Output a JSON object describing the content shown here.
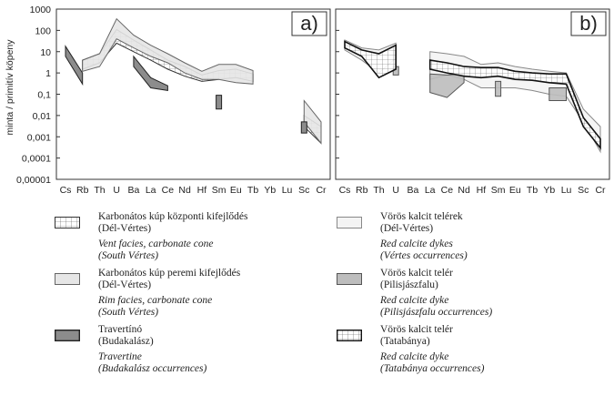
{
  "figure": {
    "ylabel": "minta / primitív köpeny",
    "ytick_labels": [
      "1000",
      "100",
      "10",
      "1",
      "0,1",
      "0,01",
      "0,001",
      "0,0001",
      "0,00001"
    ],
    "colors": {
      "vent": "#ffffff",
      "rim": "#e6e6e6",
      "travertine": "#8c8c8c",
      "red_calcite_dikes": "#f4f4f4",
      "red_calcite_pilis": "#bdbdbd",
      "red_calcite_tatabanya": "#ffffff"
    }
  },
  "chart_data": [
    {
      "type": "line",
      "panel_label": "a)",
      "categories": [
        "Cs",
        "Rb",
        "Th",
        "U",
        "Ba",
        "La",
        "Ce",
        "Nd",
        "Hf",
        "Sm",
        "Eu",
        "Tb",
        "Yb",
        "Lu",
        "Sc",
        "Cr"
      ],
      "ylabel": "minta / primitív köpeny",
      "ylim": [
        1e-05,
        1000
      ],
      "yscale": "log",
      "series": [
        {
          "name": "Karbonátos kúp központi kifejlődés (Dél-Vértes)",
          "key": "vent",
          "upper": [
            null,
            4,
            8,
            110,
            35,
            12,
            4,
            2,
            0.8,
            1.3,
            1.5,
            0.9,
            null,
            null,
            0.01,
            0.003
          ],
          "lower": [
            null,
            1.5,
            3,
            25,
            10,
            4,
            1.5,
            0.7,
            0.4,
            0.5,
            0.6,
            0.4,
            null,
            null,
            0.003,
            0.0005
          ]
        },
        {
          "name": "Karbonátos kúp peremi kifejlődés (Dél-Vértes)",
          "key": "rim",
          "upper": [
            null,
            4,
            8,
            350,
            60,
            20,
            8,
            3,
            1.2,
            2.5,
            2.5,
            1.3,
            null,
            null,
            0.05,
            0.005
          ],
          "lower": [
            null,
            1.2,
            2,
            40,
            15,
            6,
            3,
            1,
            0.5,
            0.5,
            0.35,
            0.3,
            null,
            null,
            0.005,
            0.0005
          ]
        },
        {
          "name": "Travertínó (Budakalász)",
          "key": "travertine",
          "upper": [
            18,
            1,
            null,
            null,
            6,
            0.6,
            0.25,
            null,
            null,
            0.09,
            null,
            null,
            null,
            null,
            0.005,
            null
          ],
          "lower": [
            6,
            0.3,
            null,
            null,
            2,
            0.2,
            0.15,
            null,
            null,
            0.02,
            null,
            null,
            null,
            null,
            0.0015,
            null
          ]
        }
      ]
    },
    {
      "type": "line",
      "panel_label": "b)",
      "categories": [
        "Cs",
        "Rb",
        "Th",
        "U",
        "Ba",
        "La",
        "Ce",
        "Nd",
        "Hf",
        "Sm",
        "Eu",
        "Tb",
        "Yb",
        "Lu",
        "Sc",
        "Cr"
      ],
      "ylim": [
        1e-05,
        1000
      ],
      "yscale": "log",
      "series": [
        {
          "name": "Vörös kalcit telérek (Dél-Vértes)",
          "key": "red_calcite_dikes",
          "upper": [
            35,
            15,
            12,
            25,
            null,
            10,
            8,
            6,
            2.5,
            3,
            2,
            1.5,
            1.2,
            1,
            0.02,
            0.003
          ],
          "lower": [
            12,
            4,
            1,
            5,
            null,
            0.5,
            0.8,
            0.5,
            0.2,
            0.2,
            0.2,
            0.15,
            0.1,
            0.08,
            0.005,
            0.0002
          ]
        },
        {
          "name": "Vörös kalcit telér (Pilisjászfalu)",
          "key": "red_calcite_pilis",
          "upper": [
            null,
            null,
            null,
            2,
            null,
            0.9,
            0.8,
            0.9,
            null,
            0.4,
            null,
            null,
            0.2,
            0.2,
            null,
            null
          ],
          "lower": [
            null,
            null,
            null,
            0.8,
            null,
            0.12,
            0.07,
            0.35,
            null,
            0.08,
            null,
            null,
            0.05,
            0.05,
            null,
            null
          ]
        },
        {
          "name": "Vörös kalcit telér (Tatabánya)",
          "key": "red_calcite_tatabanya",
          "upper": [
            30,
            12,
            8,
            20,
            null,
            4,
            3,
            2,
            1.8,
            1.8,
            1.2,
            1,
            0.9,
            0.9,
            0.008,
            0.0008
          ],
          "lower": [
            15,
            6,
            0.6,
            1.5,
            null,
            1.5,
            1,
            0.7,
            0.6,
            0.7,
            0.5,
            0.45,
            0.35,
            0.3,
            0.003,
            0.0003
          ]
        }
      ]
    }
  ],
  "legend": {
    "left": [
      {
        "key": "vent",
        "hu": [
          "Karbonátos kúp központi kifejlődés",
          "(Dél-Vértes)"
        ],
        "en": [
          "Vent facies, carbonate cone",
          "(South Vértes)"
        ]
      },
      {
        "key": "rim",
        "hu": [
          "Karbonátos kúp peremi kifejlődés",
          "(Dél-Vértes)"
        ],
        "en": [
          "Rim facies, carbonate cone",
          "(South Vértes)"
        ]
      },
      {
        "key": "travertine",
        "hu": [
          "Travertínó",
          "(Budakalász)"
        ],
        "en": [
          "Travertine",
          "(Budakalász occurrences)"
        ]
      }
    ],
    "right": [
      {
        "key": "red_calcite_dikes",
        "hu": [
          "Vörös kalcit telérek",
          "(Dél-Vértes)"
        ],
        "en": [
          "Red calcite dykes",
          "(Vértes occurrences)"
        ]
      },
      {
        "key": "red_calcite_pilis",
        "hu": [
          "Vörös kalcit telér",
          "(Pilisjászfalu)"
        ],
        "en": [
          "Red calcite dyke",
          "(Pilisjászfalu occurrences)"
        ]
      },
      {
        "key": "red_calcite_tatabanya",
        "hu": [
          "Vörös kalcit telér",
          "(Tatabánya)"
        ],
        "en": [
          "Red calcite dyke",
          "(Tatabánya occurrences)"
        ]
      }
    ]
  }
}
